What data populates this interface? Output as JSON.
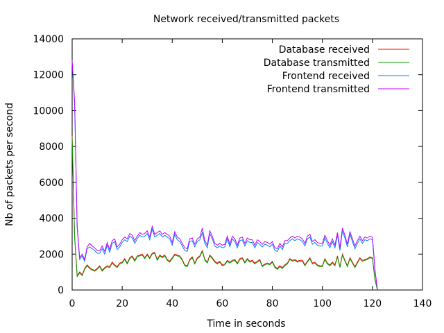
{
  "chart_data": {
    "type": "line",
    "title": "Network received/transmitted packets",
    "xlabel": "Time in seconds",
    "ylabel": "Nb of packets per second",
    "xlim": [
      0,
      140
    ],
    "ylim": [
      0,
      14000
    ],
    "xticks": [
      0,
      20,
      40,
      60,
      80,
      100,
      120,
      140
    ],
    "yticks": [
      0,
      2000,
      4000,
      6000,
      8000,
      10000,
      12000,
      14000
    ],
    "grid": false,
    "legend_position": "top-right",
    "x": [
      0,
      1,
      2,
      3,
      4,
      5,
      6,
      7,
      8,
      9,
      10,
      11,
      12,
      13,
      14,
      15,
      16,
      17,
      18,
      19,
      20,
      21,
      22,
      23,
      24,
      25,
      26,
      27,
      28,
      29,
      30,
      31,
      32,
      33,
      34,
      35,
      36,
      37,
      38,
      39,
      40,
      41,
      42,
      43,
      44,
      45,
      46,
      47,
      48,
      49,
      50,
      51,
      52,
      53,
      54,
      55,
      56,
      57,
      58,
      59,
      60,
      61,
      62,
      63,
      64,
      65,
      66,
      67,
      68,
      69,
      70,
      71,
      72,
      73,
      74,
      75,
      76,
      77,
      78,
      79,
      80,
      81,
      82,
      83,
      84,
      85,
      86,
      87,
      88,
      89,
      90,
      91,
      92,
      93,
      94,
      95,
      96,
      97,
      98,
      99,
      100,
      101,
      102,
      103,
      104,
      105,
      106,
      107,
      108,
      109,
      110,
      111,
      112,
      113,
      114,
      115,
      116,
      117,
      118,
      119,
      120,
      121,
      122
    ],
    "series": [
      {
        "name": "Database received",
        "color": "#ff0000",
        "values": [
          8600,
          3000,
          800,
          1000,
          850,
          1200,
          1400,
          1250,
          1150,
          1100,
          1200,
          1350,
          1100,
          1250,
          1350,
          1300,
          1550,
          1400,
          1300,
          1500,
          1550,
          1750,
          1500,
          1800,
          1900,
          1650,
          1900,
          1950,
          2000,
          1800,
          2000,
          1800,
          2050,
          2100,
          1700,
          1950,
          1850,
          1950,
          1700,
          1600,
          1800,
          2000,
          1950,
          1900,
          1700,
          1400,
          1350,
          1700,
          1850,
          1500,
          1800,
          1900,
          2200,
          1700,
          1550,
          1950,
          1800,
          1600,
          1500,
          1600,
          1400,
          1450,
          1650,
          1550,
          1650,
          1700,
          1500,
          1750,
          1800,
          1550,
          1750,
          1600,
          1650,
          1500,
          1600,
          1700,
          1350,
          1450,
          1500,
          1450,
          1600,
          1300,
          1200,
          1350,
          1250,
          1400,
          1500,
          1750,
          1650,
          1700,
          1600,
          1650,
          1650,
          1400,
          1600,
          1800,
          1500,
          1550,
          1400,
          1350,
          1350,
          1750,
          1500,
          1400,
          1550,
          1400,
          1900,
          1300,
          2000,
          1650,
          1350,
          1800,
          1550,
          1300,
          1550,
          1800,
          1650,
          1700,
          1750,
          1850,
          1800,
          600,
          0
        ]
      },
      {
        "name": "Database transmitted",
        "color": "#00a000",
        "values": [
          8500,
          2900,
          750,
          950,
          800,
          1150,
          1350,
          1200,
          1100,
          1050,
          1150,
          1300,
          1050,
          1200,
          1300,
          1250,
          1500,
          1350,
          1250,
          1450,
          1500,
          1700,
          1450,
          1750,
          1850,
          1600,
          1850,
          1900,
          1950,
          1750,
          1950,
          1750,
          2000,
          2050,
          1650,
          1900,
          1800,
          1900,
          1650,
          1550,
          1750,
          1950,
          1900,
          1850,
          1650,
          1350,
          1300,
          1650,
          1800,
          1450,
          1750,
          1850,
          2150,
          1650,
          1500,
          1900,
          1750,
          1550,
          1450,
          1550,
          1350,
          1400,
          1600,
          1500,
          1600,
          1650,
          1450,
          1700,
          1750,
          1500,
          1700,
          1550,
          1600,
          1450,
          1550,
          1650,
          1300,
          1400,
          1450,
          1400,
          1550,
          1250,
          1150,
          1300,
          1200,
          1350,
          1450,
          1700,
          1600,
          1650,
          1550,
          1600,
          1600,
          1350,
          1550,
          1750,
          1450,
          1500,
          1350,
          1300,
          1300,
          1700,
          1450,
          1350,
          1500,
          1350,
          1850,
          1250,
          1950,
          1600,
          1300,
          1750,
          1500,
          1250,
          1500,
          1750,
          1600,
          1650,
          1700,
          1800,
          1750,
          550,
          0
        ]
      },
      {
        "name": "Frontend received",
        "color": "#0080ff",
        "values": [
          12700,
          10300,
          3500,
          1700,
          1900,
          1600,
          2300,
          2400,
          2300,
          2200,
          2050,
          2050,
          2300,
          2000,
          2500,
          2100,
          2600,
          2700,
          2250,
          2400,
          2650,
          2800,
          2700,
          3000,
          2900,
          2600,
          2850,
          3050,
          2950,
          3000,
          3150,
          2800,
          3400,
          2950,
          3050,
          3150,
          2950,
          3050,
          2950,
          2850,
          2500,
          3100,
          2800,
          2700,
          2450,
          2200,
          2150,
          2700,
          2750,
          2400,
          2700,
          2800,
          3200,
          2600,
          2350,
          3150,
          2850,
          2450,
          2350,
          2450,
          2350,
          2400,
          2850,
          2400,
          2850,
          2700,
          2350,
          2750,
          2800,
          2450,
          2750,
          2650,
          2650,
          2350,
          2650,
          2550,
          2400,
          2550,
          2500,
          2400,
          2550,
          2200,
          2150,
          2450,
          2250,
          2600,
          2600,
          2750,
          2850,
          2750,
          2850,
          2800,
          2700,
          2450,
          2850,
          2950,
          2550,
          2650,
          2500,
          2450,
          2450,
          2900,
          2600,
          2350,
          2700,
          2350,
          3050,
          2200,
          3300,
          2900,
          2400,
          3100,
          2700,
          2300,
          2600,
          2850,
          2600,
          2800,
          2750,
          2850,
          2800,
          1100,
          0
        ]
      },
      {
        "name": "Frontend transmitted",
        "color": "#c000ff",
        "values": [
          12800,
          10500,
          3600,
          1800,
          2000,
          1700,
          2400,
          2600,
          2450,
          2350,
          2200,
          2200,
          2450,
          2150,
          2650,
          2250,
          2750,
          2850,
          2400,
          2550,
          2800,
          2950,
          2850,
          3150,
          3050,
          2750,
          3000,
          3200,
          3100,
          3150,
          3300,
          2950,
          3550,
          3100,
          3200,
          3300,
          3100,
          3200,
          3100,
          3000,
          2650,
          3250,
          2950,
          2850,
          2600,
          2350,
          2300,
          2850,
          2900,
          2550,
          2850,
          2950,
          3450,
          2750,
          2500,
          3300,
          3000,
          2600,
          2500,
          2600,
          2500,
          2550,
          3000,
          2550,
          3000,
          2850,
          2500,
          2900,
          2950,
          2600,
          2900,
          2800,
          2800,
          2500,
          2800,
          2700,
          2550,
          2700,
          2650,
          2550,
          2700,
          2350,
          2300,
          2600,
          2400,
          2750,
          2750,
          2900,
          3000,
          2900,
          3000,
          2950,
          2850,
          2600,
          3000,
          3100,
          2700,
          2800,
          2650,
          2600,
          2600,
          3050,
          2750,
          2500,
          2850,
          2500,
          3200,
          2350,
          3450,
          3050,
          2550,
          3250,
          2850,
          2450,
          2750,
          3000,
          2750,
          2950,
          2900,
          3000,
          2950,
          1150,
          0
        ]
      }
    ]
  }
}
